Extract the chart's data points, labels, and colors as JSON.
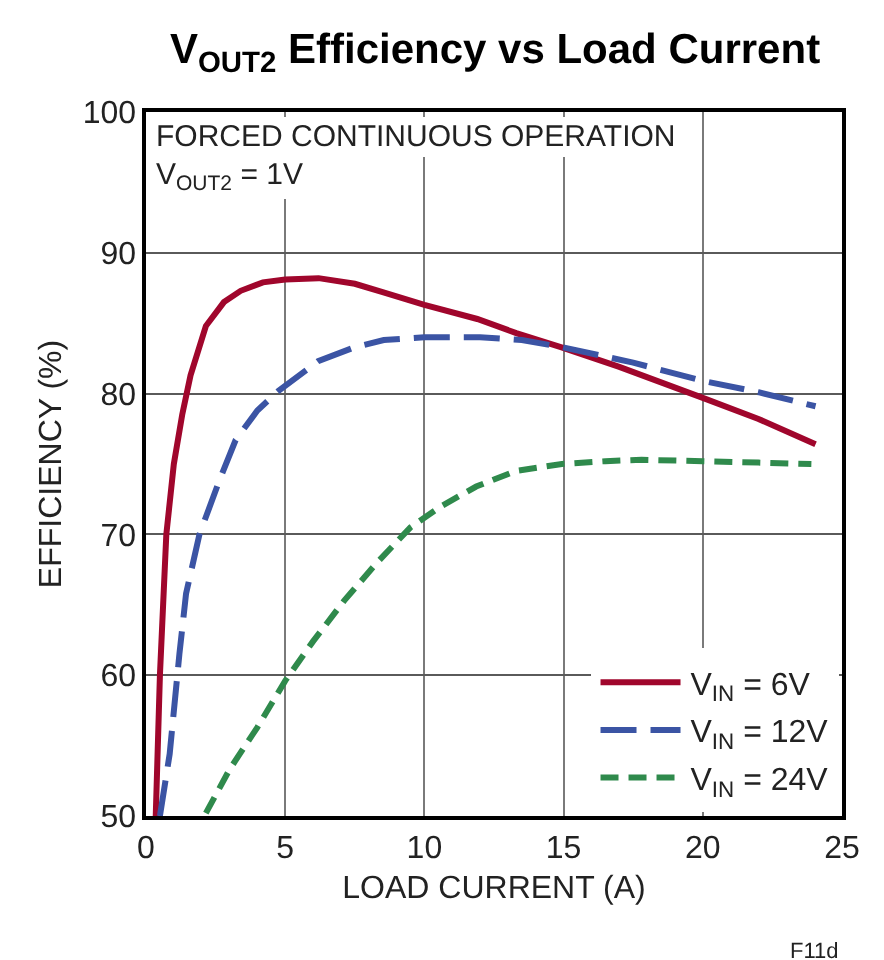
{
  "chart_data": {
    "type": "line",
    "title": "V$_{OUT2}$ Efficiency vs Load Current",
    "xlabel": "LOAD CURRENT (A)",
    "ylabel": "EFFICIENCY (%)",
    "annotations": [
      "FORCED CONTINUOUS OPERATION",
      "V$_{OUT2}$ = 1V",
      "F11d"
    ],
    "xlim": [
      0,
      25
    ],
    "ylim": [
      50,
      100
    ],
    "xticks": [
      0,
      5,
      10,
      15,
      20,
      25
    ],
    "yticks": [
      50,
      60,
      70,
      80,
      90,
      100
    ],
    "grid": true,
    "legend": "bottom right",
    "series": [
      {
        "name": "V$_{IN}$ = 6V",
        "color": "#a0062c",
        "line_style": "solid",
        "x": [
          0.35,
          0.5,
          0.73,
          1.0,
          1.3,
          1.6,
          2.15,
          2.8,
          3.4,
          4.2,
          5.0,
          6.2,
          7.5,
          8.5,
          10.0,
          11.9,
          13.3,
          14.9,
          17.0,
          20.0,
          22.0,
          24.05
        ],
        "values": [
          50,
          60,
          70,
          75,
          78.5,
          81.3,
          84.8,
          86.5,
          87.3,
          87.9,
          88.1,
          88.2,
          87.8,
          87.2,
          86.3,
          85.3,
          84.3,
          83.3,
          81.9,
          79.7,
          78.2,
          76.4
        ]
      },
      {
        "name": "V$_{IN}$ = 12V",
        "color": "#3b54a4",
        "line_style": "dashed",
        "x": [
          0.5,
          0.85,
          1.2,
          1.44,
          1.92,
          2.63,
          3.22,
          4.0,
          4.76,
          6.18,
          7.5,
          8.54,
          10.0,
          12.0,
          13.5,
          14.94,
          17.5,
          20.0,
          22.0,
          24.05
        ],
        "values": [
          50,
          54.4,
          61.5,
          65.8,
          70,
          73.8,
          76.7,
          78.8,
          80.2,
          82.3,
          83.3,
          83.8,
          84,
          84,
          83.8,
          83.3,
          82.2,
          80.9,
          80.1,
          79.1
        ]
      },
      {
        "name": "V$_{IN}$ = 24V",
        "color": "#2f8a4c",
        "line_style": "dashed",
        "x": [
          2.15,
          3.0,
          4.0,
          5.0,
          6.0,
          7.12,
          8.3,
          9.5,
          10.6,
          11.86,
          13.28,
          14.94,
          16.5,
          17.8,
          20.0,
          22.0,
          23.9
        ],
        "values": [
          50.2,
          53.3,
          56.3,
          59.6,
          62.4,
          65.3,
          68,
          70.5,
          72,
          73.4,
          74.5,
          75,
          75.2,
          75.3,
          75.2,
          75.1,
          75.0
        ]
      }
    ]
  }
}
